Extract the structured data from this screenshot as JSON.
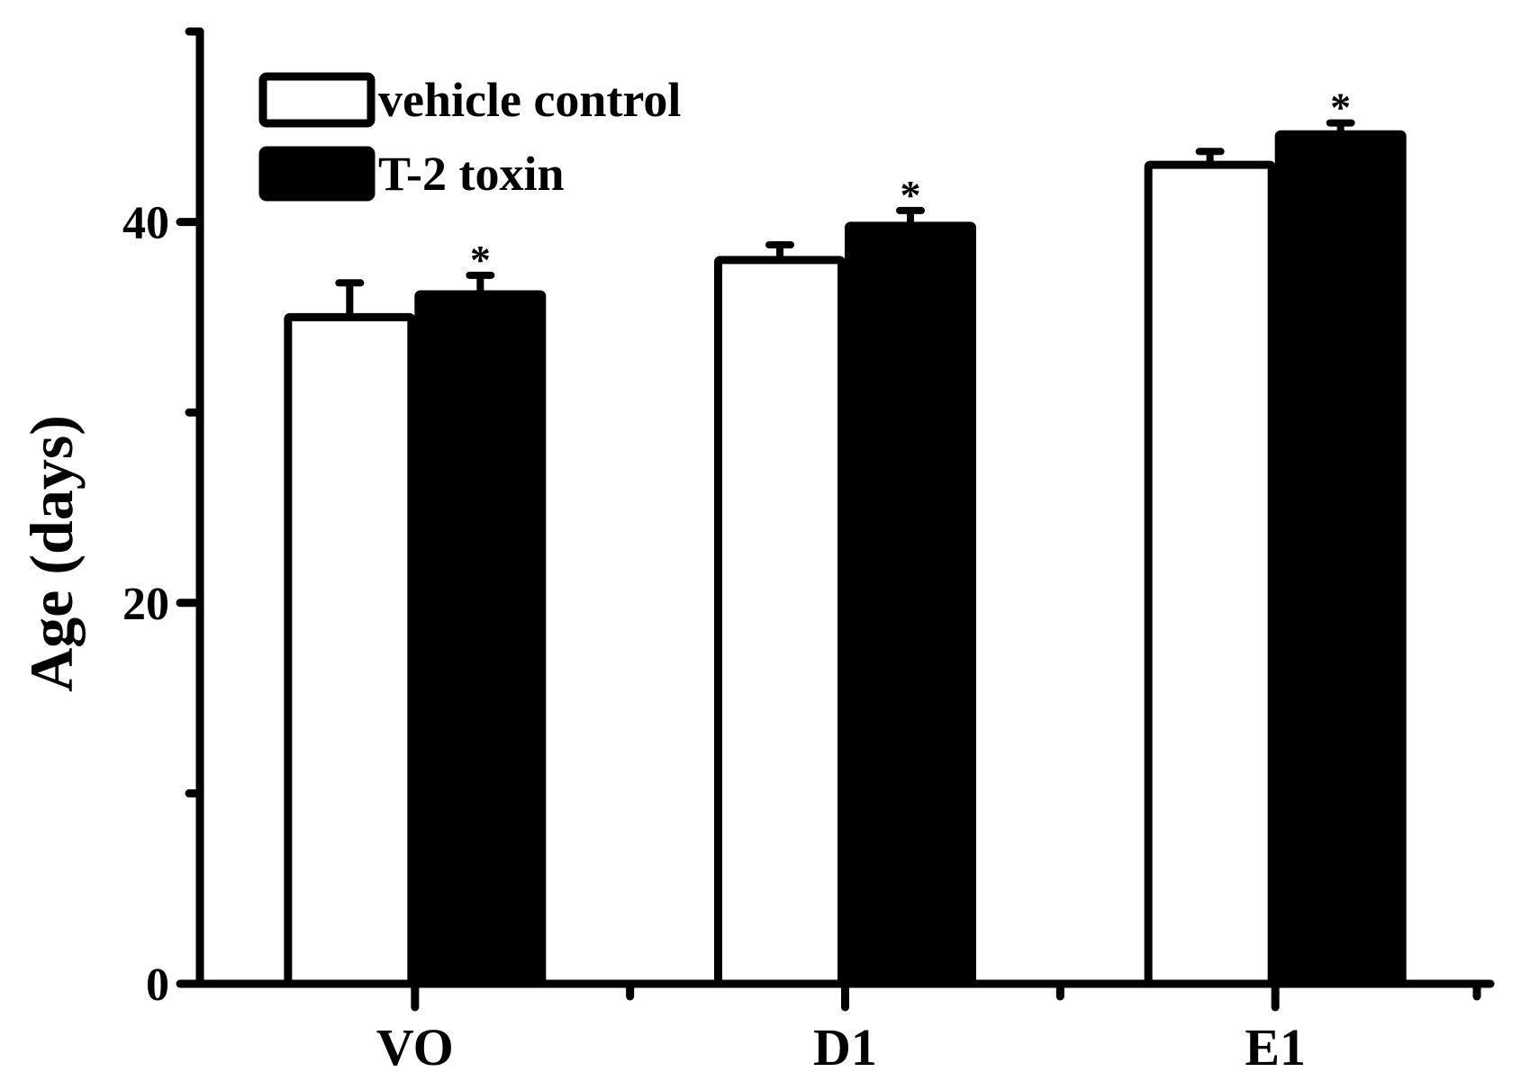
{
  "chart_data": {
    "type": "bar",
    "title": "",
    "xlabel": "",
    "ylabel": "Age (days)",
    "ylim": [
      0,
      50
    ],
    "yticks_labeled": [
      0,
      20,
      40
    ],
    "yticks_minor": [
      10,
      30,
      50
    ],
    "categories": [
      "VO",
      "D1",
      "E1"
    ],
    "series": [
      {
        "name": "vehicle control",
        "color": "#ffffff",
        "values": [
          35,
          38,
          43
        ],
        "errors": [
          1.8,
          0.8,
          0.7
        ],
        "significance": [
          "",
          "",
          ""
        ]
      },
      {
        "name": "T-2 toxin",
        "color": "#000000",
        "values": [
          36.2,
          39.8,
          44.6
        ],
        "errors": [
          1.0,
          0.8,
          0.6
        ],
        "significance": [
          "*",
          "*",
          "*"
        ]
      }
    ],
    "legend": "top-left",
    "grid": false
  }
}
